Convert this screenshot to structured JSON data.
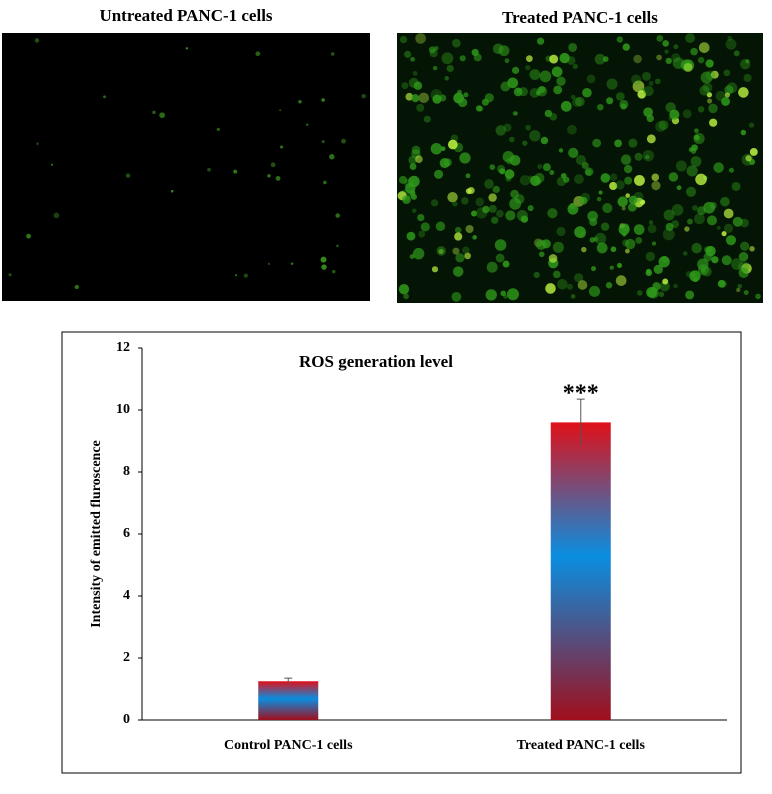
{
  "panels": [
    {
      "label": "Untreated PANC-1 cells"
    },
    {
      "label": "Treated PANC-1 cells"
    }
  ],
  "chart_data": {
    "type": "bar",
    "title": "ROS generation level",
    "y_label": "Intensity of emitted fluroscence",
    "categories": [
      "Control PANC-1 cells",
      "Treated PANC-1 cells"
    ],
    "values": [
      1.25,
      9.6
    ],
    "errors": [
      0.1,
      0.75
    ],
    "annotation": "***",
    "ylim": [
      0,
      12
    ],
    "yticks": [
      0,
      2,
      4,
      6,
      8,
      10,
      12
    ],
    "grid": false
  }
}
